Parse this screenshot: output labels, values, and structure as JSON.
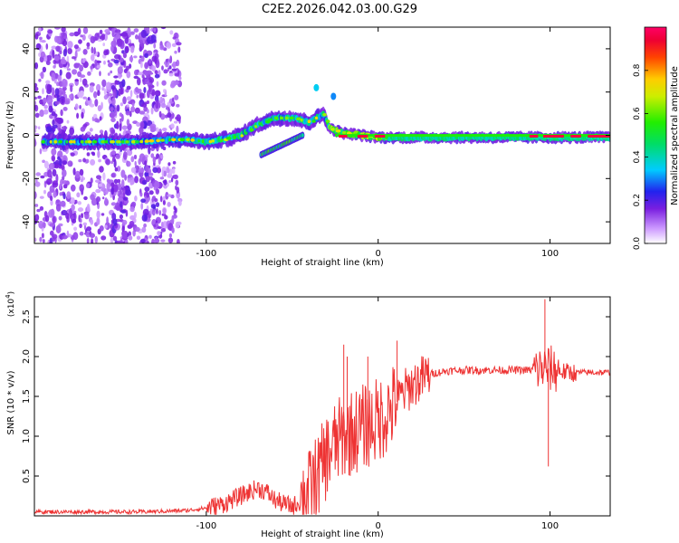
{
  "title": "C2E2.2026.042.03.00.G29",
  "chart_data": [
    {
      "type": "heatmap",
      "name": "spectrogram",
      "xlabel": "Height of straight line (km)",
      "ylabel": "Frequency (Hz)",
      "xlim": [
        -200,
        135
      ],
      "ylim": [
        -50,
        50
      ],
      "xticks": [
        -100,
        0,
        100
      ],
      "yticks": [
        -40,
        -20,
        0,
        20,
        40
      ],
      "xtick_labels": [
        "-100",
        "0",
        "100"
      ],
      "ytick_labels": [
        "-40",
        "-20",
        "0",
        "20",
        "40"
      ],
      "noise_region_x": [
        -200,
        -115
      ],
      "noise_columns_x": [
        -187,
        -150,
        -133
      ],
      "signal_track": [
        {
          "x": -195,
          "f": -3
        },
        {
          "x": -180,
          "f": -3
        },
        {
          "x": -160,
          "f": -3
        },
        {
          "x": -140,
          "f": -3
        },
        {
          "x": -120,
          "f": -2
        },
        {
          "x": -110,
          "f": -2
        },
        {
          "x": -100,
          "f": -3
        },
        {
          "x": -90,
          "f": -2
        },
        {
          "x": -80,
          "f": 0
        },
        {
          "x": -70,
          "f": 5
        },
        {
          "x": -60,
          "f": 8
        },
        {
          "x": -50,
          "f": 8
        },
        {
          "x": -40,
          "f": 6
        },
        {
          "x": -32,
          "f": 10
        },
        {
          "x": -28,
          "f": 3
        },
        {
          "x": -20,
          "f": 1
        },
        {
          "x": -10,
          "f": 0
        },
        {
          "x": 0,
          "f": -1
        },
        {
          "x": 20,
          "f": -1
        },
        {
          "x": 60,
          "f": -1
        },
        {
          "x": 100,
          "f": -1
        },
        {
          "x": 135,
          "f": -1
        }
      ],
      "secondary_track": [
        {
          "x": -68,
          "f": -9
        },
        {
          "x": -60,
          "f": -6
        },
        {
          "x": -52,
          "f": -3
        },
        {
          "x": -44,
          "f": 0
        }
      ],
      "colorbar": {
        "label": "Normalized spectral amplitude",
        "range": [
          0,
          1
        ],
        "ticks": [
          0.0,
          0.2,
          0.4,
          0.6,
          0.8
        ],
        "tick_labels": [
          "0.0",
          "0.2",
          "0.4",
          "0.6",
          "0.8"
        ]
      }
    },
    {
      "type": "line",
      "name": "snr",
      "xlabel": "Height of straight line (km)",
      "ylabel": "SNR (10 * v/v)",
      "scale_label": "(x10",
      "scale_exponent": "4",
      "scale_close": ")",
      "xlim": [
        -200,
        135
      ],
      "ylim": [
        0.0,
        2.75
      ],
      "xticks": [
        -100,
        0,
        100
      ],
      "yticks": [
        0.5,
        1.0,
        1.5,
        2.0,
        2.5
      ],
      "xtick_labels": [
        "-100",
        "0",
        "100"
      ],
      "ytick_labels": [
        "0.5",
        "1.0",
        "1.5",
        "2.0",
        "2.5"
      ],
      "color": "#ee3333",
      "series": [
        {
          "name": "SNR",
          "x": [
            -200,
            -180,
            -160,
            -140,
            -120,
            -110,
            -100,
            -90,
            -80,
            -70,
            -65,
            -60,
            -55,
            -50,
            -45,
            -40,
            -35,
            -30,
            -25,
            -20,
            -15,
            -10,
            -5,
            0,
            5,
            10,
            15,
            20,
            25,
            30,
            40,
            50,
            60,
            70,
            80,
            90,
            95,
            98,
            100,
            105,
            110,
            115,
            120,
            125,
            135
          ],
          "values": [
            0.05,
            0.05,
            0.05,
            0.05,
            0.06,
            0.07,
            0.1,
            0.15,
            0.25,
            0.35,
            0.3,
            0.2,
            0.15,
            0.12,
            0.18,
            0.3,
            0.5,
            0.75,
            0.9,
            1.0,
            1.05,
            1.1,
            1.15,
            1.2,
            1.3,
            1.4,
            1.55,
            1.65,
            1.72,
            1.78,
            1.82,
            1.83,
            1.83,
            1.83,
            1.83,
            1.83,
            1.85,
            1.85,
            1.85,
            1.82,
            1.8,
            1.8,
            1.8,
            1.8,
            1.8
          ]
        }
      ]
    }
  ]
}
